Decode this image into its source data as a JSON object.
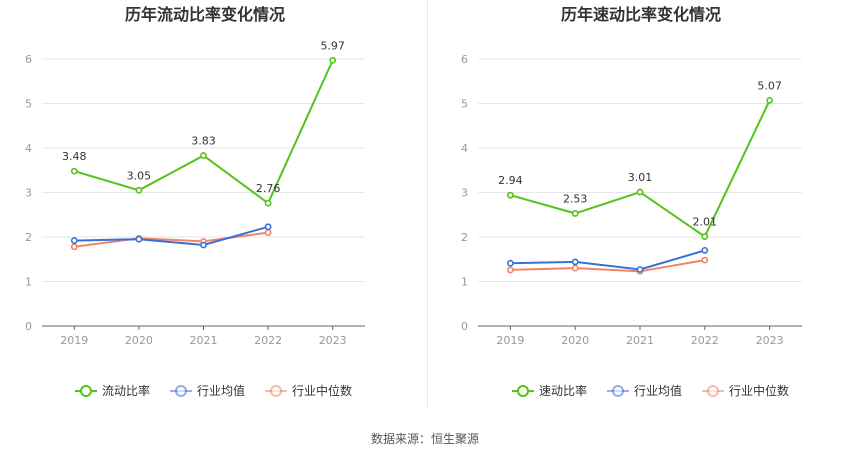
{
  "source": {
    "label": "数据来源：",
    "name": "恒生聚源"
  },
  "chart_data": [
    {
      "type": "line",
      "title": "历年流动比率变化情况",
      "categories": [
        "2019",
        "2020",
        "2021",
        "2022",
        "2023"
      ],
      "ylim": [
        0,
        6
      ],
      "yticks": [
        "0",
        "1",
        "2",
        "3",
        "4",
        "5",
        "6"
      ],
      "grid": true,
      "legend_position": "bottom",
      "series": [
        {
          "name": "流动比率",
          "color": "#52c41a",
          "values": [
            3.48,
            3.05,
            3.83,
            2.76,
            5.97
          ],
          "labels": [
            "3.48",
            "3.05",
            "3.83",
            "2.76",
            "5.97"
          ]
        },
        {
          "name": "行业均值",
          "color": "#3a6fd8",
          "values": [
            1.92,
            1.95,
            1.82,
            2.23,
            null
          ]
        },
        {
          "name": "行业中位数",
          "color": "#f08566",
          "values": [
            1.78,
            1.97,
            1.9,
            2.1,
            null
          ]
        }
      ]
    },
    {
      "type": "line",
      "title": "历年速动比率变化情况",
      "categories": [
        "2019",
        "2020",
        "2021",
        "2022",
        "2023"
      ],
      "ylim": [
        0,
        6
      ],
      "yticks": [
        "0",
        "1",
        "2",
        "3",
        "4",
        "5",
        "6"
      ],
      "grid": true,
      "legend_position": "bottom",
      "series": [
        {
          "name": "速动比率",
          "color": "#52c41a",
          "values": [
            2.94,
            2.53,
            3.01,
            2.01,
            5.07
          ],
          "labels": [
            "2.94",
            "2.53",
            "3.01",
            "2.01",
            "5.07"
          ]
        },
        {
          "name": "行业均值",
          "color": "#3a6fd8",
          "values": [
            1.41,
            1.44,
            1.27,
            1.7,
            null
          ]
        },
        {
          "name": "行业中位数",
          "color": "#f08566",
          "values": [
            1.26,
            1.3,
            1.23,
            1.48,
            null
          ]
        }
      ]
    }
  ]
}
